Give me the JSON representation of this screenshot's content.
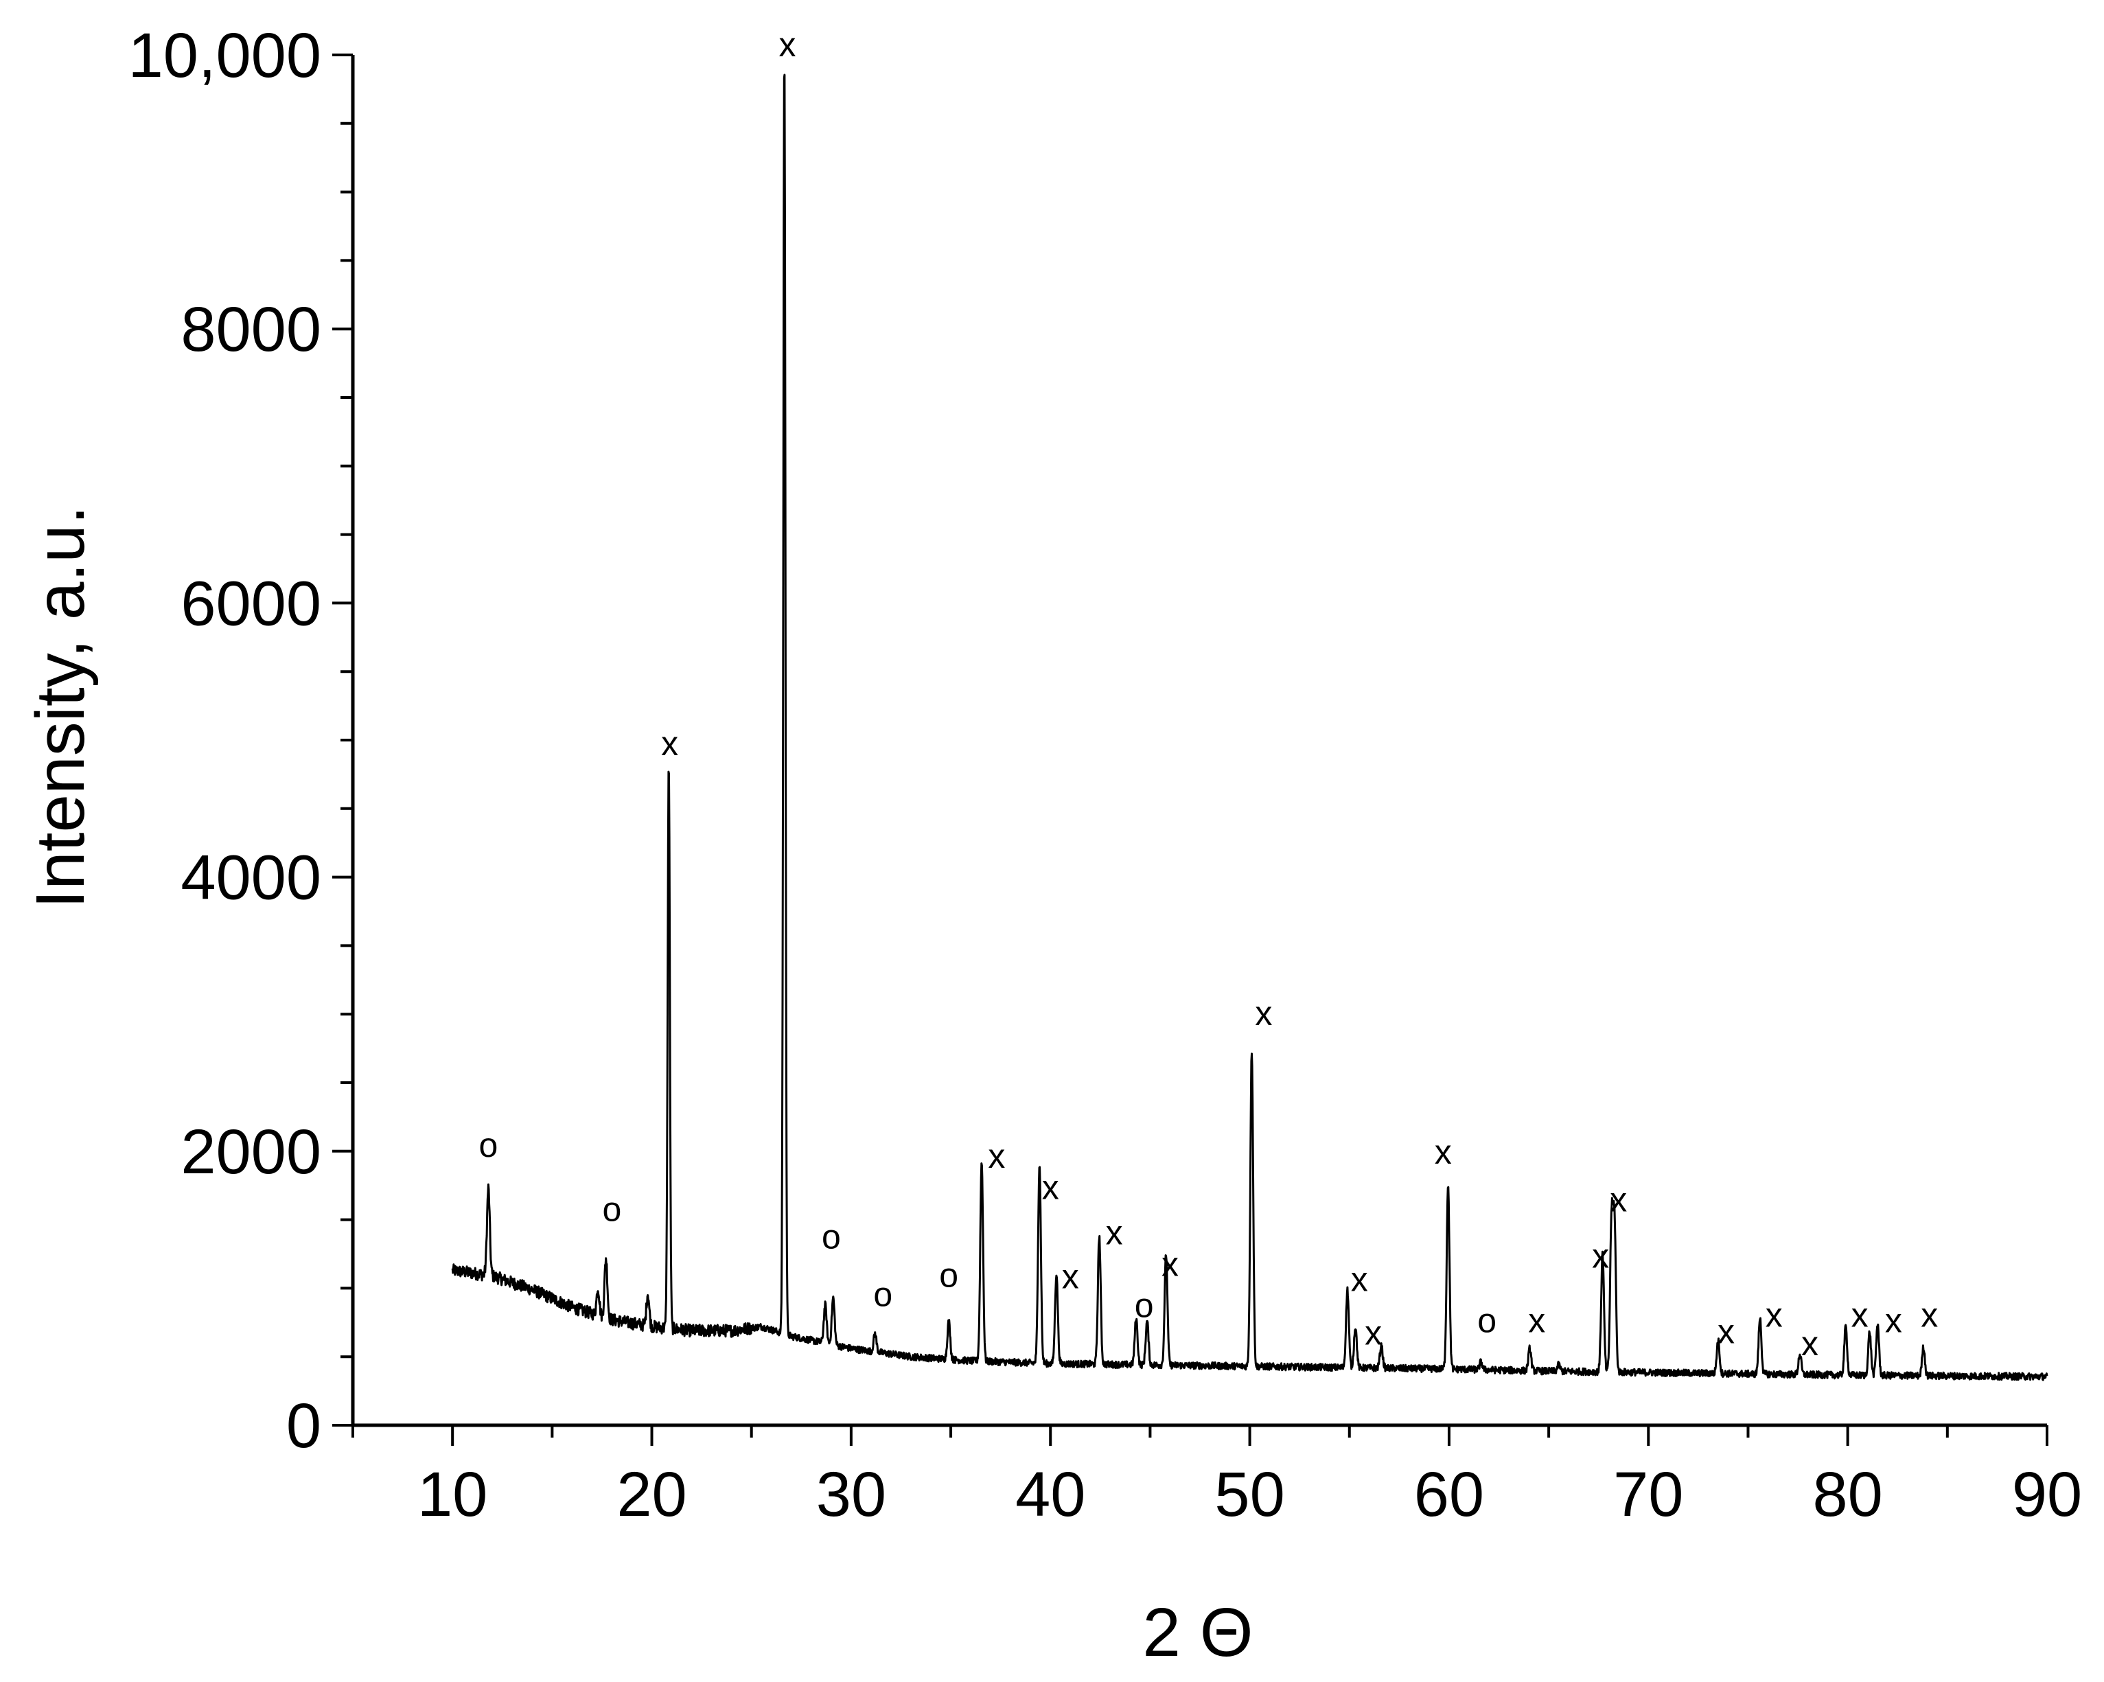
{
  "chart_data": {
    "type": "line",
    "title": "",
    "xlabel": "2 Θ",
    "ylabel": "Intensity, a.u.",
    "xlim": [
      5,
      90
    ],
    "ylim": [
      0,
      10000
    ],
    "x_ticks": [
      10,
      20,
      30,
      40,
      50,
      60,
      70,
      80,
      90
    ],
    "x_tick_labels": [
      "10",
      "20",
      "30",
      "40",
      "50",
      "60",
      "70",
      "80",
      "90"
    ],
    "y_ticks": [
      0,
      2000,
      4000,
      6000,
      8000,
      10000
    ],
    "y_tick_labels": [
      "0",
      "2000",
      "4000",
      "6000",
      "8000",
      "10,000"
    ],
    "grid": false,
    "legend": "none",
    "line_color": "#000000",
    "background": {
      "range": [
        10,
        90
      ],
      "points": [
        [
          10,
          1130
        ],
        [
          12,
          1090
        ],
        [
          14,
          990
        ],
        [
          16,
          860
        ],
        [
          18,
          770
        ],
        [
          20,
          720
        ],
        [
          22,
          690
        ],
        [
          24,
          690
        ],
        [
          25.5,
          720
        ],
        [
          27,
          650
        ],
        [
          30,
          560
        ],
        [
          33,
          500
        ],
        [
          36,
          470
        ],
        [
          40,
          450
        ],
        [
          45,
          440
        ],
        [
          50,
          430
        ],
        [
          55,
          420
        ],
        [
          60,
          410
        ],
        [
          65,
          395
        ],
        [
          70,
          385
        ],
        [
          75,
          375
        ],
        [
          80,
          365
        ],
        [
          85,
          360
        ],
        [
          90,
          355
        ]
      ]
    },
    "peaks": [
      {
        "x": 11.8,
        "y": 1730
      },
      {
        "x": 17.3,
        "y": 1000
      },
      {
        "x": 17.7,
        "y": 1220
      },
      {
        "x": 19.8,
        "y": 960
      },
      {
        "x": 20.85,
        "y": 4830
      },
      {
        "x": 26.65,
        "y": 10000
      },
      {
        "x": 28.7,
        "y": 880
      },
      {
        "x": 29.1,
        "y": 930
      },
      {
        "x": 31.2,
        "y": 670
      },
      {
        "x": 34.9,
        "y": 760
      },
      {
        "x": 36.55,
        "y": 1930
      },
      {
        "x": 39.45,
        "y": 1910
      },
      {
        "x": 40.3,
        "y": 1110
      },
      {
        "x": 42.45,
        "y": 1380
      },
      {
        "x": 44.3,
        "y": 780
      },
      {
        "x": 44.85,
        "y": 760
      },
      {
        "x": 45.8,
        "y": 1250
      },
      {
        "x": 50.1,
        "y": 2730
      },
      {
        "x": 54.9,
        "y": 990
      },
      {
        "x": 55.3,
        "y": 720
      },
      {
        "x": 56.6,
        "y": 580
      },
      {
        "x": 59.95,
        "y": 1760
      },
      {
        "x": 61.6,
        "y": 460
      },
      {
        "x": 64.05,
        "y": 560
      },
      {
        "x": 65.5,
        "y": 440
      },
      {
        "x": 67.7,
        "y": 1250
      },
      {
        "x": 68.15,
        "y": 1480
      },
      {
        "x": 68.3,
        "y": 1470
      },
      {
        "x": 73.5,
        "y": 620
      },
      {
        "x": 75.6,
        "y": 780
      },
      {
        "x": 77.6,
        "y": 520
      },
      {
        "x": 79.9,
        "y": 720
      },
      {
        "x": 81.1,
        "y": 680
      },
      {
        "x": 81.5,
        "y": 740
      },
      {
        "x": 83.8,
        "y": 570
      }
    ],
    "annotations": [
      {
        "text": "o",
        "x": 11.8,
        "y": 2040
      },
      {
        "text": "o",
        "x": 18.0,
        "y": 1570
      },
      {
        "text": "x",
        "x": 20.9,
        "y": 4970
      },
      {
        "text": "x",
        "x": 26.8,
        "y": 10070
      },
      {
        "text": "o",
        "x": 29.0,
        "y": 1370
      },
      {
        "text": "o",
        "x": 31.6,
        "y": 950
      },
      {
        "text": "o",
        "x": 34.9,
        "y": 1090
      },
      {
        "text": "x",
        "x": 37.3,
        "y": 1960
      },
      {
        "text": "x",
        "x": 40.0,
        "y": 1730
      },
      {
        "text": "x",
        "x": 41.0,
        "y": 1080
      },
      {
        "text": "x",
        "x": 43.2,
        "y": 1400
      },
      {
        "text": "o",
        "x": 44.7,
        "y": 870
      },
      {
        "text": "x",
        "x": 46.0,
        "y": 1170
      },
      {
        "text": "x",
        "x": 50.7,
        "y": 3000
      },
      {
        "text": "x",
        "x": 55.5,
        "y": 1060
      },
      {
        "text": "x",
        "x": 56.2,
        "y": 670
      },
      {
        "text": "x",
        "x": 59.7,
        "y": 1990
      },
      {
        "text": "o",
        "x": 61.9,
        "y": 760
      },
      {
        "text": "x",
        "x": 64.4,
        "y": 760
      },
      {
        "text": "x",
        "x": 67.6,
        "y": 1230
      },
      {
        "text": "x",
        "x": 68.5,
        "y": 1640
      },
      {
        "text": "x",
        "x": 73.9,
        "y": 680
      },
      {
        "text": "x",
        "x": 76.3,
        "y": 800
      },
      {
        "text": "x",
        "x": 78.1,
        "y": 590
      },
      {
        "text": "x",
        "x": 80.6,
        "y": 800
      },
      {
        "text": "x",
        "x": 82.3,
        "y": 760
      },
      {
        "text": "x",
        "x": 84.1,
        "y": 800
      }
    ]
  }
}
